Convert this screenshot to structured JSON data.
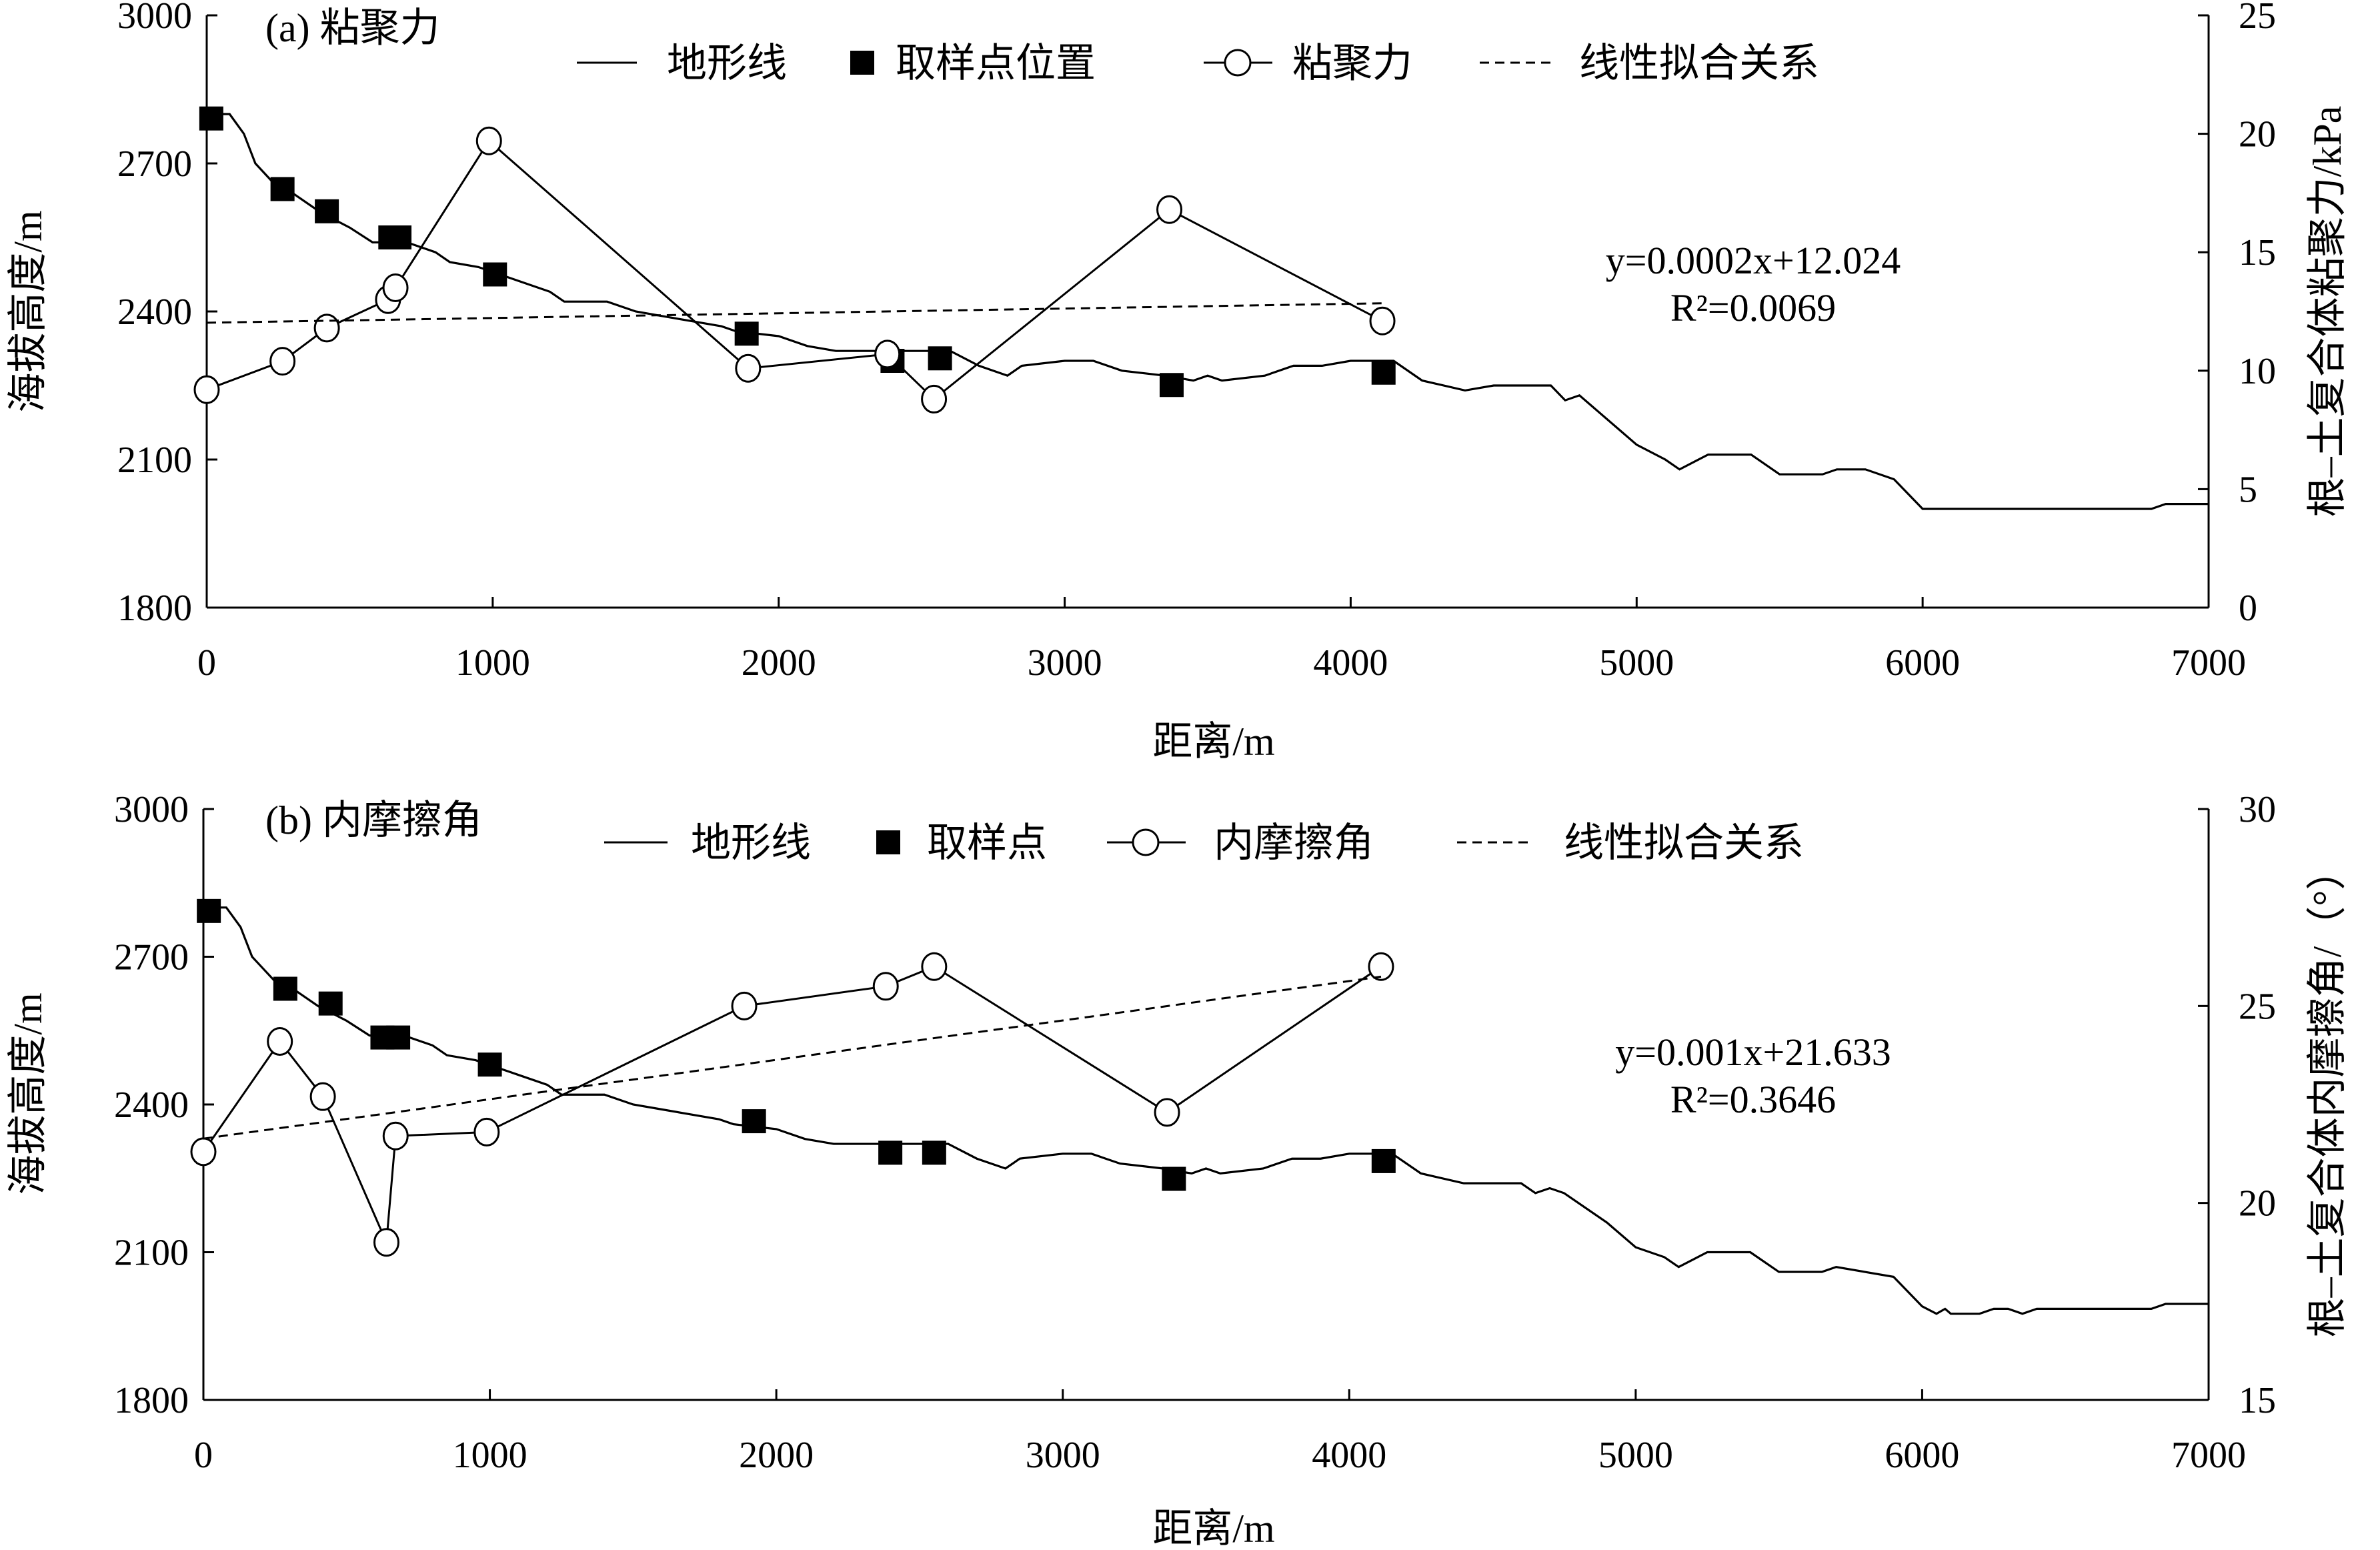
{
  "colors": {
    "line": "#000000",
    "background": "#ffffff"
  },
  "chart_data": [
    {
      "type": "line",
      "panel_label": "(a) 粘聚力",
      "xlabel": "距离/m",
      "ylabel_left": "海拔高度/m",
      "ylabel_right": "根–土复合体粘聚力/kPa",
      "xlim": [
        0,
        7000
      ],
      "ylim_left": [
        1800,
        3000
      ],
      "ylim_right": [
        0,
        25
      ],
      "xticks": [
        "0",
        "1000",
        "2000",
        "3000",
        "4000",
        "5000",
        "6000",
        "7000"
      ],
      "yticks_left": [
        "1800",
        "2100",
        "2400",
        "2700",
        "3000"
      ],
      "yticks_right": [
        "0",
        "5",
        "10",
        "15",
        "20",
        "25"
      ],
      "grid": false,
      "legend_position": "top",
      "legend": [
        "地形线",
        "取样点位置",
        "粘聚力",
        "线性拟合关系"
      ],
      "equation": "y=0.0002x+12.024",
      "r2_label": "R²=0.0069",
      "series": [
        {
          "name": "地形线",
          "axis": "left",
          "style": "line",
          "x": [
            0,
            80,
            130,
            170,
            250,
            300,
            400,
            500,
            580,
            700,
            800,
            850,
            950,
            1000,
            1100,
            1200,
            1250,
            1400,
            1500,
            1600,
            1700,
            1800,
            1850,
            2000,
            2100,
            2200,
            2400,
            2600,
            2700,
            2800,
            2850,
            3000,
            3100,
            3200,
            3350,
            3450,
            3500,
            3550,
            3700,
            3800,
            3900,
            4000,
            4150,
            4250,
            4400,
            4500,
            4700,
            4750,
            4800,
            4900,
            5000,
            5100,
            5150,
            5250,
            5300,
            5400,
            5500,
            5650,
            5700,
            5800,
            5900,
            6000,
            6800,
            6850,
            7000
          ],
          "y": [
            2800,
            2800,
            2760,
            2700,
            2650,
            2640,
            2600,
            2570,
            2540,
            2540,
            2520,
            2500,
            2490,
            2480,
            2460,
            2440,
            2420,
            2420,
            2400,
            2390,
            2380,
            2370,
            2360,
            2350,
            2330,
            2320,
            2320,
            2320,
            2290,
            2270,
            2290,
            2300,
            2300,
            2280,
            2270,
            2260,
            2270,
            2260,
            2270,
            2290,
            2290,
            2300,
            2300,
            2260,
            2240,
            2250,
            2250,
            2220,
            2230,
            2180,
            2130,
            2100,
            2080,
            2110,
            2110,
            2110,
            2070,
            2070,
            2080,
            2080,
            2060,
            2000,
            2000,
            2010,
            2010
          ]
        },
        {
          "name": "取样点位置",
          "axis": "left",
          "style": "square",
          "x": [
            16,
            265,
            420,
            642,
            674,
            1008,
            1888,
            2398,
            2564,
            3374,
            4115
          ],
          "y": [
            2791,
            2648,
            2603,
            2550,
            2550,
            2475,
            2355,
            2300,
            2305,
            2251,
            2276
          ]
        },
        {
          "name": "粘聚力",
          "axis": "right",
          "style": "line-circle",
          "x": [
            0,
            265,
            420,
            634,
            660,
            987,
            1893,
            2380,
            2543,
            3366,
            4111
          ],
          "y": [
            9.2,
            10.4,
            11.8,
            13.0,
            13.5,
            19.7,
            10.1,
            10.7,
            8.8,
            16.8,
            12.1
          ]
        },
        {
          "name": "线性拟合关系",
          "axis": "right",
          "style": "dashed",
          "x": [
            0,
            4111
          ],
          "y": [
            12.024,
            12.846
          ]
        }
      ]
    },
    {
      "type": "line",
      "panel_label": "(b) 内摩擦角",
      "xlabel": "距离/m",
      "ylabel_left": "海拔高度/m",
      "ylabel_right": "根–土复合体内摩擦角/（°）",
      "xlim": [
        0,
        7000
      ],
      "ylim_left": [
        1800,
        3000
      ],
      "ylim_right": [
        15,
        30
      ],
      "xticks": [
        "0",
        "1000",
        "2000",
        "3000",
        "4000",
        "5000",
        "6000",
        "7000"
      ],
      "yticks_left": [
        "1800",
        "2100",
        "2400",
        "2700",
        "3000"
      ],
      "yticks_right": [
        "15",
        "20",
        "25",
        "30"
      ],
      "grid": false,
      "legend_position": "top",
      "legend": [
        "地形线",
        "取样点",
        "内摩擦角",
        "线性拟合关系"
      ],
      "equation": "y=0.001x+21.633",
      "r2_label": "R²=0.3646",
      "series": [
        {
          "name": "地形线",
          "axis": "left",
          "style": "line",
          "x": [
            0,
            80,
            130,
            170,
            250,
            300,
            400,
            500,
            580,
            700,
            800,
            850,
            950,
            1000,
            1100,
            1200,
            1250,
            1400,
            1500,
            1600,
            1700,
            1800,
            1850,
            2000,
            2100,
            2200,
            2400,
            2600,
            2700,
            2800,
            2850,
            3000,
            3100,
            3200,
            3350,
            3450,
            3500,
            3550,
            3700,
            3800,
            3900,
            4000,
            4150,
            4250,
            4400,
            4500,
            4600,
            4650,
            4700,
            4750,
            4800,
            4900,
            5000,
            5100,
            5150,
            5250,
            5300,
            5400,
            5500,
            5650,
            5700,
            5800,
            5900,
            6000,
            6050,
            6080,
            6100,
            6200,
            6250,
            6300,
            6350,
            6400,
            6800,
            6850,
            7000
          ],
          "y": [
            2800,
            2800,
            2760,
            2700,
            2650,
            2640,
            2600,
            2570,
            2540,
            2540,
            2520,
            2500,
            2490,
            2480,
            2460,
            2440,
            2420,
            2420,
            2400,
            2390,
            2380,
            2370,
            2360,
            2350,
            2330,
            2320,
            2320,
            2320,
            2290,
            2270,
            2290,
            2300,
            2300,
            2280,
            2270,
            2260,
            2270,
            2260,
            2270,
            2290,
            2290,
            2300,
            2300,
            2260,
            2240,
            2240,
            2240,
            2220,
            2230,
            2220,
            2200,
            2160,
            2110,
            2090,
            2070,
            2100,
            2100,
            2100,
            2060,
            2060,
            2070,
            2060,
            2050,
            1990,
            1975,
            1985,
            1975,
            1975,
            1985,
            1985,
            1975,
            1985,
            1985,
            1995,
            1995
          ]
        },
        {
          "name": "取样点",
          "axis": "left",
          "style": "square",
          "x": [
            19,
            286,
            444,
            625,
            680,
            1000,
            1922,
            2398,
            2551,
            3388,
            4120
          ],
          "y": [
            2793,
            2635,
            2605,
            2536,
            2536,
            2481,
            2366,
            2302,
            2302,
            2249,
            2285
          ]
        },
        {
          "name": "内摩擦角",
          "axis": "right",
          "style": "line-circle",
          "x": [
            0,
            267,
            417,
            639,
            671,
            989,
            1888,
            2382,
            2551,
            3364,
            4111
          ],
          "y": [
            21.3,
            24.1,
            22.7,
            19.0,
            21.7,
            21.8,
            25.0,
            25.5,
            26.0,
            22.3,
            26.0
          ]
        },
        {
          "name": "线性拟合关系",
          "axis": "right",
          "style": "dashed",
          "x": [
            0,
            4111
          ],
          "y": [
            21.633,
            25.744
          ]
        }
      ]
    }
  ]
}
